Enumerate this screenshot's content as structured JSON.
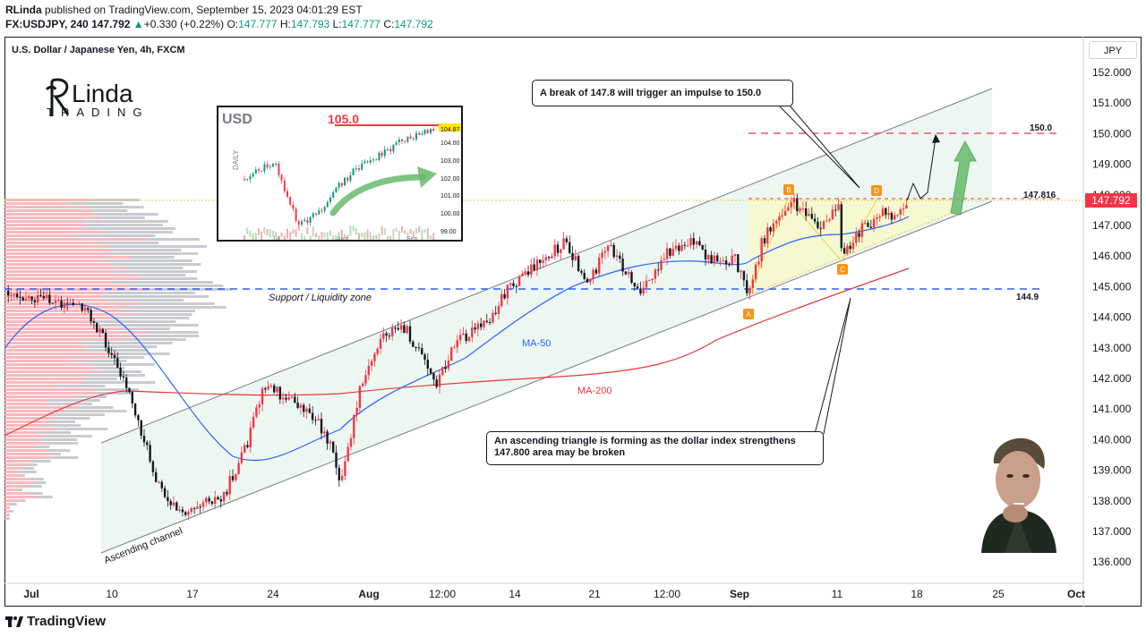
{
  "header": {
    "author": "RLinda",
    "published_text": "published on TradingView.com, September 15, 2023 04:01:29 EST",
    "symbol_line": {
      "symbol": "FX:USDJPY, 240",
      "price": "147.792",
      "change": "+0.330 (+0.22%)",
      "o_label": "O:",
      "o": "147.777",
      "h_label": "H:",
      "h": "147.793",
      "l_label": "L:",
      "l": "147.777",
      "c_label": "C:",
      "c": "147.792"
    }
  },
  "chart": {
    "title": "U.S. Dollar / Japanese Yen, 4h, FXCM",
    "currency_button": "JPY",
    "last_price_label": "147.792",
    "y_axis_labels": [
      "152.000",
      "151.000",
      "150.000",
      "149.000",
      "148.000",
      "147.000",
      "146.000",
      "145.000",
      "144.000",
      "143.000",
      "142.000",
      "141.000",
      "140.000",
      "139.000",
      "138.000",
      "137.000",
      "136.000"
    ],
    "x_axis_labels": [
      "Jul",
      "10",
      "17",
      "24",
      "Aug",
      "12:00",
      "14",
      "21",
      "12:00",
      "Sep",
      "11",
      "18",
      "25",
      "Oct"
    ],
    "annotations": {
      "support_zone": "Support / Liquidity zone",
      "channel": "Ascending channel",
      "ma50": "MA-50",
      "ma200": "MA-200",
      "level_150": "150.0",
      "level_147816": "147.816",
      "level_1449": "144.9",
      "point_a": "A",
      "point_b": "B",
      "point_c": "C",
      "point_d": "D"
    },
    "callout_top": "A break of 147.8 will trigger an impulse to 150.0",
    "callout_bottom_line1": "An ascending triangle is forming as the dollar index strengthens",
    "callout_bottom_line2": "147.800 area may be broken",
    "colors": {
      "up": "#089981",
      "down": "#f23645",
      "candle_up": "#ffffff",
      "candle_down": "#131722",
      "ma50": "#2962ff",
      "ma200": "#e53935",
      "channel_fill": "#e6f4ea",
      "dashed_blue": "#2962ff",
      "dashed_red": "#f23645",
      "badge": "#f7931a",
      "price_tag": "#f23645"
    }
  },
  "inset": {
    "title": "USD",
    "level_label": "105.0",
    "side_label": "DAILY",
    "y_labels": [
      "104.87",
      "104.00",
      "103.00",
      "102.00",
      "101.00",
      "100.00",
      "99.00"
    ],
    "x_labels": [
      "Jul",
      "Aug",
      "Sep"
    ]
  },
  "logo": {
    "line1": "Linda",
    "line2": "TRADING"
  },
  "footer": {
    "brand": "TradingView"
  }
}
